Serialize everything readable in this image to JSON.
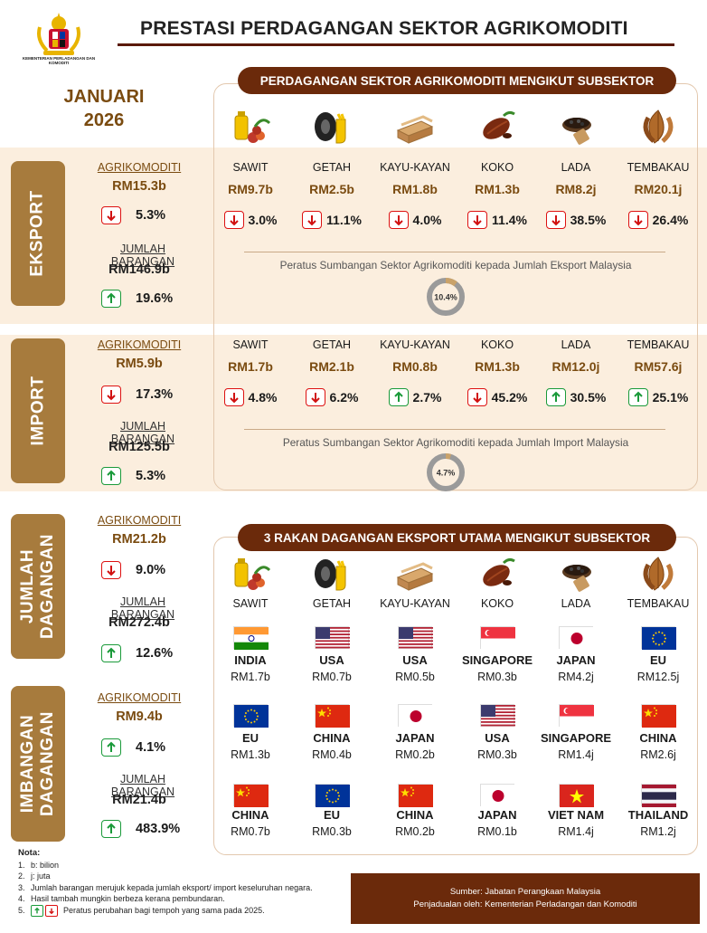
{
  "header": {
    "logo_text": "KEMENTERIAN PERLADANGAN DAN KOMODITI",
    "title": "PRESTASI PERDAGANGAN SEKTOR AGRIKOMODITI",
    "month": "JANUARI",
    "year": "2026"
  },
  "section1_title": "PERDAGANGAN SEKTOR AGRIKOMODITI MENGIKUT SUBSEKTOR",
  "section2_title": "3 RAKAN DAGANGAN EKSPORT UTAMA MENGIKUT SUBSEKTOR",
  "colors": {
    "accent": "#6b2a0b",
    "tab": "#a77b3d",
    "band": "#fbeede",
    "down": "#d11111",
    "up": "#1a9a3a"
  },
  "sections": [
    {
      "label": "EKSPORT",
      "agri_label": "AGRIKOMODITI",
      "agri_value": "RM15.3b",
      "agri_dir": "down",
      "agri_pct": "5.3%",
      "total_label": "JUMLAH BARANGAN",
      "total_value": "RM146.9b",
      "total_dir": "up",
      "total_pct": "19.6%"
    },
    {
      "label": "IMPORT",
      "agri_label": "AGRIKOMODITI",
      "agri_value": "RM5.9b",
      "agri_dir": "down",
      "agri_pct": "17.3%",
      "total_label": "JUMLAH BARANGAN",
      "total_value": "RM125.5b",
      "total_dir": "up",
      "total_pct": "5.3%"
    },
    {
      "label": "JUMLAH DAGANGAN",
      "agri_label": "AGRIKOMODITI",
      "agri_value": "RM21.2b",
      "agri_dir": "down",
      "agri_pct": "9.0%",
      "total_label": "JUMLAH BARANGAN",
      "total_value": "RM272.4b",
      "total_dir": "up",
      "total_pct": "12.6%"
    },
    {
      "label": "IMBANGAN DAGANGAN",
      "agri_label": "AGRIKOMODITI",
      "agri_value": "RM9.4b",
      "agri_dir": "up",
      "agri_pct": "4.1%",
      "total_label": "JUMLAH BARANGAN",
      "total_value": "RM21.4b",
      "total_dir": "up",
      "total_pct": "483.9%"
    }
  ],
  "subsectors": [
    "SAWIT",
    "GETAH",
    "KAYU-KAYAN",
    "KOKO",
    "LADA",
    "TEMBAKAU"
  ],
  "subsectors2": [
    "SAWIT",
    "GETAH",
    "KAYU-KAYAN",
    "KOKO",
    "LADA",
    "TEMBAKAU"
  ],
  "icons": [
    "palm-oil-icon",
    "rubber-icon",
    "timber-icon",
    "cocoa-icon",
    "pepper-icon",
    "tobacco-icon"
  ],
  "export_rows": [
    {
      "name": "SAWIT",
      "value": "RM9.7b",
      "dir": "down",
      "pct": "3.0%"
    },
    {
      "name": "GETAH",
      "value": "RM2.5b",
      "dir": "down",
      "pct": "11.1%"
    },
    {
      "name": "KAYU-KAYAN",
      "value": "RM1.8b",
      "dir": "down",
      "pct": "4.0%"
    },
    {
      "name": "KOKO",
      "value": "RM1.3b",
      "dir": "down",
      "pct": "11.4%"
    },
    {
      "name": "LADA",
      "value": "RM8.2j",
      "dir": "down",
      "pct": "38.5%"
    },
    {
      "name": "TEMBAKAU",
      "value": "RM20.1j",
      "dir": "down",
      "pct": "26.4%"
    }
  ],
  "import_rows": [
    {
      "name": "SAWIT",
      "value": "RM1.7b",
      "dir": "down",
      "pct": "4.8%"
    },
    {
      "name": "GETAH",
      "value": "RM2.1b",
      "dir": "down",
      "pct": "6.2%"
    },
    {
      "name": "KAYU-KAYAN",
      "value": "RM0.8b",
      "dir": "up",
      "pct": "2.7%"
    },
    {
      "name": "KOKO",
      "value": "RM1.3b",
      "dir": "down",
      "pct": "45.2%"
    },
    {
      "name": "LADA",
      "value": "RM12.0j",
      "dir": "up",
      "pct": "30.5%"
    },
    {
      "name": "TEMBAKAU",
      "value": "RM57.6j",
      "dir": "up",
      "pct": "25.1%"
    }
  ],
  "export_share": {
    "label": "Peratus Sumbangan Sektor Agrikomoditi kepada Jumlah Eksport Malaysia",
    "value": "10.4%",
    "fraction": 0.104
  },
  "import_share": {
    "label": "Peratus Sumbangan Sektor Agrikomoditi kepada Jumlah Import Malaysia",
    "value": "4.7%",
    "fraction": 0.047
  },
  "partners": [
    [
      {
        "flag": "india",
        "country": "INDIA",
        "value": "RM1.7b"
      },
      {
        "flag": "usa",
        "country": "USA",
        "value": "RM0.7b"
      },
      {
        "flag": "usa",
        "country": "USA",
        "value": "RM0.5b"
      },
      {
        "flag": "singapore",
        "country": "SINGAPORE",
        "value": "RM0.3b"
      },
      {
        "flag": "japan",
        "country": "JAPAN",
        "value": "RM4.2j"
      },
      {
        "flag": "eu",
        "country": "EU",
        "value": "RM12.5j"
      }
    ],
    [
      {
        "flag": "eu",
        "country": "EU",
        "value": "RM1.3b"
      },
      {
        "flag": "china",
        "country": "CHINA",
        "value": "RM0.4b"
      },
      {
        "flag": "japan",
        "country": "JAPAN",
        "value": "RM0.2b"
      },
      {
        "flag": "usa",
        "country": "USA",
        "value": "RM0.3b"
      },
      {
        "flag": "singapore",
        "country": "SINGAPORE",
        "value": "RM1.4j"
      },
      {
        "flag": "china",
        "country": "CHINA",
        "value": "RM2.6j"
      }
    ],
    [
      {
        "flag": "china",
        "country": "CHINA",
        "value": "RM0.7b"
      },
      {
        "flag": "eu",
        "country": "EU",
        "value": "RM0.3b"
      },
      {
        "flag": "china",
        "country": "CHINA",
        "value": "RM0.2b"
      },
      {
        "flag": "japan",
        "country": "JAPAN",
        "value": "RM0.1b"
      },
      {
        "flag": "vietnam",
        "country": "VIET NAM",
        "value": "RM1.4j"
      },
      {
        "flag": "thailand",
        "country": "THAILAND",
        "value": "RM1.2j"
      }
    ]
  ],
  "notes": {
    "title": "Nota:",
    "items": [
      "b: bilion",
      "j: juta",
      "Jumlah barangan merujuk kepada jumlah eksport/ import keseluruhan negara.",
      "Hasil tambah mungkin berbeza kerana pembundaran.",
      "Peratus perubahan bagi tempoh yang sama pada 2025."
    ]
  },
  "source": {
    "line1": "Sumber: Jabatan Perangkaan Malaysia",
    "line2": "Penjadualan oleh: Kementerian Perladangan dan Komoditi"
  }
}
